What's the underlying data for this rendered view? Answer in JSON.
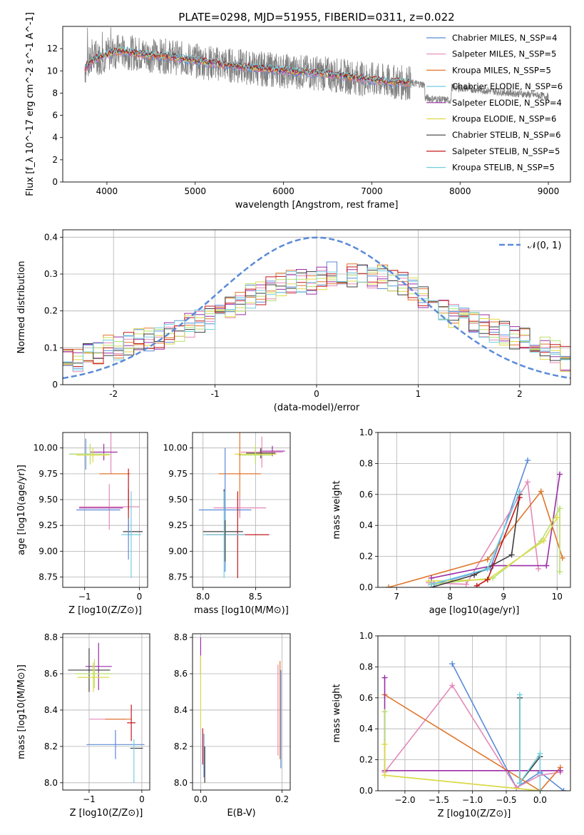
{
  "figure": {
    "title": "PLATE=0298, MJD=51955, FIBERID=0311, z=0.022"
  },
  "palette": [
    "#5b8bd8",
    "#e48ab9",
    "#e0762b",
    "#9b2fa7",
    "#b7e06b",
    "#ded947",
    "#3e3e3e",
    "#c3181c",
    "#72cfe0"
  ],
  "chart_data": [
    {
      "id": "spectrum",
      "type": "line",
      "title": "PLATE=0298, MJD=51955, FIBERID=0311, z=0.022",
      "xlabel": "wavelength [Angstrom, rest frame]",
      "ylabel": "Flux [f_λ 10^-17 erg cm^-2 s^-1 A^-1]",
      "xlim": [
        3500,
        9250
      ],
      "ylim": [
        0,
        14
      ],
      "xticks": [
        4000,
        5000,
        6000,
        7000,
        8000,
        9000
      ],
      "yticks": [
        0,
        2,
        4,
        6,
        8,
        10,
        12
      ],
      "legend": "top-right",
      "data_color": "#808080",
      "data_range": [
        3750,
        9000
      ],
      "models_range": [
        3750,
        7430
      ],
      "continuum": {
        "x": [
          3750,
          3850,
          3950,
          4050,
          4150,
          4300,
          4500,
          4700,
          5000,
          5300,
          5600,
          6000,
          6400,
          6800,
          7200,
          7430,
          7800,
          8200,
          8600,
          9000
        ],
        "y": [
          10.2,
          11.0,
          11.3,
          11.6,
          11.8,
          11.6,
          11.4,
          11.3,
          10.9,
          10.6,
          10.3,
          10.0,
          9.8,
          9.4,
          9.0,
          8.9,
          8.6,
          8.3,
          8.0,
          7.7
        ]
      },
      "series": [
        {
          "name": "Chabrier MILES, N_SSP=4",
          "color": "#5b8bd8"
        },
        {
          "name": "Salpeter MILES, N_SSP=5",
          "color": "#e48ab9"
        },
        {
          "name": "Kroupa MILES, N_SSP=5",
          "color": "#e0762b"
        },
        {
          "name": "Chabrier ELODIE, N_SSP=6",
          "color": "#72cfe0"
        },
        {
          "name": "Salpeter ELODIE, N_SSP=4",
          "color": "#9b2fa7"
        },
        {
          "name": "Kroupa ELODIE, N_SSP=6",
          "color": "#ded947"
        },
        {
          "name": "Chabrier STELIB, N_SSP=6",
          "color": "#3e3e3e"
        },
        {
          "name": "Salpeter STELIB, N_SSP=5",
          "color": "#c3181c"
        },
        {
          "name": "Kroupa STELIB, N_SSP=5",
          "color": "#72cfe0"
        }
      ]
    },
    {
      "id": "residuals",
      "type": "line",
      "xlabel": "(data-model)/error",
      "ylabel": "Normed distribution",
      "xlim": [
        -2.5,
        2.5
      ],
      "ylim": [
        0,
        0.42
      ],
      "xticks": [
        -2,
        -1,
        0,
        1,
        2
      ],
      "yticks": [
        0.0,
        0.1,
        0.2,
        0.3,
        0.4
      ],
      "grid": true,
      "legend": "top-right",
      "reference": {
        "name": "𝒩(0, 1)",
        "color": "#5b8bd8",
        "mean": 0,
        "sigma": 1
      },
      "bins": 50,
      "base": [
        0.07,
        0.07,
        0.08,
        0.09,
        0.1,
        0.1,
        0.11,
        0.12,
        0.12,
        0.13,
        0.14,
        0.15,
        0.16,
        0.17,
        0.18,
        0.19,
        0.21,
        0.22,
        0.24,
        0.25,
        0.26,
        0.27,
        0.28,
        0.28,
        0.28,
        0.29,
        0.3,
        0.3,
        0.3,
        0.3,
        0.29,
        0.29,
        0.28,
        0.27,
        0.26,
        0.24,
        0.22,
        0.21,
        0.19,
        0.18,
        0.17,
        0.16,
        0.15,
        0.14,
        0.13,
        0.12,
        0.11,
        0.1,
        0.09,
        0.07
      ],
      "series_colors": [
        "#5b8bd8",
        "#e48ab9",
        "#e0762b",
        "#9b2fa7",
        "#b7e06b",
        "#ded947",
        "#3e3e3e",
        "#c3181c",
        "#72cfe0"
      ]
    },
    {
      "id": "age-vs-Z",
      "type": "errorbar",
      "xlabel": "Z [log10(Z/Z⊙)]",
      "ylabel": "age  [log10(age/yr)]",
      "xlim": [
        -1.4,
        0.15
      ],
      "ylim": [
        8.65,
        10.15
      ],
      "xticks": [
        -1,
        0
      ],
      "yticks": [
        8.75,
        9.0,
        9.25,
        9.5,
        9.75,
        10.0
      ],
      "xtick_labels": [
        "−1",
        "0"
      ],
      "ytick_labels": [
        "8.75",
        "9.00",
        "9.25",
        "9.50",
        "9.75",
        "10.00"
      ],
      "grid": true,
      "points": [
        {
          "c": "#e48ab9",
          "x": -0.52,
          "y": 9.95,
          "xe": 0.0,
          "ye": 0.2
        },
        {
          "c": "#9b2fa7",
          "x": -0.65,
          "y": 9.96,
          "xe": 0.25,
          "ye": 0.08
        },
        {
          "c": "#5b8bd8",
          "x": -0.98,
          "y": 9.94,
          "xe": 0.3,
          "ye": 0.15
        },
        {
          "c": "#b7e06b",
          "x": -0.9,
          "y": 9.94,
          "xe": 0.38,
          "ye": 0.1
        },
        {
          "c": "#ded947",
          "x": -0.85,
          "y": 9.93,
          "xe": 0.3,
          "ye": 0.07
        },
        {
          "c": "#e0762b",
          "x": -0.45,
          "y": 9.75,
          "xe": 0.28,
          "ye": 0.0
        },
        {
          "c": "#c3181c",
          "x": -0.2,
          "y": 9.6,
          "xe": 0.0,
          "ye": 0.2
        },
        {
          "c": "#e48ab9",
          "x": -0.55,
          "y": 9.43,
          "xe": 0.55,
          "ye": 0.22
        },
        {
          "c": "#9b2fa7",
          "x": -0.7,
          "y": 9.42,
          "xe": 0.4,
          "ye": 0.0
        },
        {
          "c": "#5b8bd8",
          "x": -0.75,
          "y": 9.4,
          "xe": 0.4,
          "ye": 0.0
        },
        {
          "c": "#c3181c",
          "x": -0.2,
          "y": 9.4,
          "xe": 0.0,
          "ye": 0.2
        },
        {
          "c": "#3e3e3e",
          "x": -0.12,
          "y": 9.19,
          "xe": 0.18,
          "ye": 0.0
        },
        {
          "c": "#72cfe0",
          "x": -0.15,
          "y": 9.16,
          "xe": 0.18,
          "ye": 0.42
        },
        {
          "c": "#5b8bd8",
          "x": -0.2,
          "y": 9.12,
          "xe": 0.0,
          "ye": 0.2
        }
      ]
    },
    {
      "id": "age-vs-mass",
      "type": "errorbar",
      "xlabel": "mass [log10(M/M⊙)]",
      "ylabel": "",
      "xlim": [
        7.9,
        8.83
      ],
      "ylim": [
        8.65,
        10.15
      ],
      "xticks": [
        8.0,
        8.5
      ],
      "yticks": [
        8.75,
        9.0,
        9.25,
        9.5,
        9.75,
        10.0
      ],
      "xtick_labels": [
        "8.0",
        "8.5"
      ],
      "ytick_labels": [
        "8.75",
        "9.00",
        "9.25",
        "9.50",
        "9.75",
        "10.00"
      ],
      "grid": true,
      "points": [
        {
          "c": "#9b2fa7",
          "x": 8.66,
          "y": 9.97,
          "xe": 0.12,
          "ye": 0.05
        },
        {
          "c": "#e48ab9",
          "x": 8.56,
          "y": 9.96,
          "xe": 0.2,
          "ye": 0.15
        },
        {
          "c": "#3e3e3e",
          "x": 8.55,
          "y": 9.95,
          "xe": 0.14,
          "ye": 0.05
        },
        {
          "c": "#ded947",
          "x": 8.5,
          "y": 9.94,
          "xe": 0.2,
          "ye": 0.09
        },
        {
          "c": "#b7e06b",
          "x": 8.5,
          "y": 9.93,
          "xe": 0.16,
          "ye": 0.08
        },
        {
          "c": "#e0762b",
          "x": 8.35,
          "y": 9.75,
          "xe": 0.2,
          "ye": 0.4
        },
        {
          "c": "#e48ab9",
          "x": 8.35,
          "y": 9.42,
          "xe": 0.25,
          "ye": 0.1
        },
        {
          "c": "#5b8bd8",
          "x": 8.21,
          "y": 9.4,
          "xe": 0.25,
          "ye": 0.6
        },
        {
          "c": "#3e3e3e",
          "x": 8.2,
          "y": 9.5,
          "xe": 0.0,
          "ye": 0.1
        },
        {
          "c": "#3e3e3e",
          "x": 8.19,
          "y": 9.19,
          "xe": 0.19,
          "ye": 0.0
        },
        {
          "c": "#c3181c",
          "x": 8.33,
          "y": 9.16,
          "xe": 0.3,
          "ye": 0.42
        },
        {
          "c": "#72cfe0",
          "x": 8.2,
          "y": 9.16,
          "xe": 0.2,
          "ye": 0.42
        },
        {
          "c": "#3e3e3e",
          "x": 8.21,
          "y": 9.1,
          "xe": 0.0,
          "ye": 0.2
        }
      ]
    },
    {
      "id": "massweight-vs-age",
      "type": "line",
      "xlabel": "age  [log10(age/yr)]",
      "ylabel": "mass weight",
      "xlim": [
        6.65,
        10.25
      ],
      "ylim": [
        0,
        1.0
      ],
      "xticks": [
        7,
        8,
        9,
        10
      ],
      "yticks": [
        0.0,
        0.2,
        0.4,
        0.6,
        0.8,
        1.0
      ],
      "xtick_labels": [
        "7",
        "8",
        "9",
        "10"
      ],
      "ytick_labels": [
        "0.0",
        "0.2",
        "0.4",
        "0.6",
        "0.8",
        "1.0"
      ],
      "grid": true,
      "series": [
        {
          "color": "#5b8bd8",
          "x": [
            7.7,
            8.75,
            9.45
          ],
          "y": [
            0.02,
            0.12,
            0.82
          ]
        },
        {
          "color": "#e48ab9",
          "x": [
            7.6,
            8.3,
            9.45,
            9.65
          ],
          "y": [
            0.03,
            0.02,
            0.68,
            0.12
          ]
        },
        {
          "color": "#e0762b",
          "x": [
            6.85,
            8.7,
            9.7,
            10.1
          ],
          "y": [
            0.0,
            0.18,
            0.62,
            0.19
          ]
        },
        {
          "color": "#9b2fa7",
          "x": [
            7.65,
            8.8,
            9.8,
            10.05
          ],
          "y": [
            0.06,
            0.14,
            0.14,
            0.73
          ]
        },
        {
          "color": "#b7e06b",
          "x": [
            7.65,
            8.8,
            9.7,
            10.05,
            10.05
          ],
          "y": [
            0.02,
            0.06,
            0.3,
            0.51,
            0.1
          ]
        },
        {
          "color": "#ded947",
          "x": [
            7.6,
            8.7,
            9.75,
            10.0
          ],
          "y": [
            0.04,
            0.05,
            0.3,
            0.45
          ]
        },
        {
          "color": "#3e3e3e",
          "x": [
            7.65,
            8.45,
            9.15,
            9.3
          ],
          "y": [
            0.0,
            0.08,
            0.21,
            0.6
          ]
        },
        {
          "color": "#c3181c",
          "x": [
            8.5,
            8.7,
            9.3
          ],
          "y": [
            0.01,
            0.05,
            0.58
          ]
        },
        {
          "color": "#72cfe0",
          "x": [
            7.65,
            8.7,
            9.3
          ],
          "y": [
            0.02,
            0.12,
            0.62
          ]
        }
      ]
    },
    {
      "id": "mass-vs-Z",
      "type": "errorbar",
      "xlabel": "Z [log10(Z/Z⊙)]",
      "ylabel": "mass [log10(M/M⊙)]",
      "xlim": [
        -1.5,
        0.15
      ],
      "ylim": [
        7.96,
        8.82
      ],
      "xticks": [
        -1,
        0
      ],
      "yticks": [
        8.0,
        8.2,
        8.4,
        8.6,
        8.8
      ],
      "xtick_labels": [
        "−1",
        "0"
      ],
      "ytick_labels": [
        "8.0",
        "8.2",
        "8.4",
        "8.6",
        "8.8"
      ],
      "grid": true,
      "points": [
        {
          "c": "#9b2fa7",
          "x": -0.82,
          "y": 8.64,
          "xe": 0.25,
          "ye": 0.13
        },
        {
          "c": "#3e3e3e",
          "x": -1.0,
          "y": 8.62,
          "xe": 0.4,
          "ye": 0.12
        },
        {
          "c": "#b7e06b",
          "x": -0.9,
          "y": 8.6,
          "xe": 0.35,
          "ye": 0.08
        },
        {
          "c": "#ded947",
          "x": -0.92,
          "y": 8.58,
          "xe": 0.3,
          "ye": 0.08
        },
        {
          "c": "#e48ab9",
          "x": -0.65,
          "y": 8.35,
          "xe": 0.35,
          "ye": 0.0
        },
        {
          "c": "#e0762b",
          "x": -0.45,
          "y": 8.35,
          "xe": 0.25,
          "ye": 0.0
        },
        {
          "c": "#c3181c",
          "x": -0.2,
          "y": 8.33,
          "xe": 0.08,
          "ye": 0.1
        },
        {
          "c": "#5b8bd8",
          "x": -0.5,
          "y": 8.21,
          "xe": 0.55,
          "ye": 0.08
        },
        {
          "c": "#3e3e3e",
          "x": -0.1,
          "y": 8.19,
          "xe": 0.12,
          "ye": 0.0
        },
        {
          "c": "#72cfe0",
          "x": -0.15,
          "y": 8.12,
          "xe": 0.0,
          "ye": 0.12
        }
      ]
    },
    {
      "id": "mass-vs-ebv",
      "type": "errorbar",
      "xlabel": "E(B-V)",
      "ylabel": "",
      "xlim": [
        -0.02,
        0.22
      ],
      "ylim": [
        7.96,
        8.82
      ],
      "xticks": [
        0.0,
        0.2
      ],
      "yticks": [
        8.0,
        8.2,
        8.4,
        8.6,
        8.8
      ],
      "xtick_labels": [
        "0.0",
        "0.2"
      ],
      "ytick_labels": [
        "8.0",
        "8.2",
        "8.4",
        "8.6",
        "8.8"
      ],
      "grid": true,
      "points": [
        {
          "c": "#9b2fa7",
          "x": 0.0,
          "y": 8.7,
          "xe": 0.0,
          "ye": 0.1
        },
        {
          "c": "#ded947",
          "x": 0.0,
          "y": 8.5,
          "xe": 0.0,
          "ye": 0.2
        },
        {
          "c": "#c3181c",
          "x": 0.005,
          "y": 8.2,
          "xe": 0.0,
          "ye": 0.1
        },
        {
          "c": "#5b8bd8",
          "x": 0.008,
          "y": 8.15,
          "xe": 0.0,
          "ye": 0.12
        },
        {
          "c": "#3e3e3e",
          "x": 0.01,
          "y": 8.1,
          "xe": 0.0,
          "ye": 0.1
        },
        {
          "c": "#e48ab9",
          "x": 0.19,
          "y": 8.4,
          "xe": 0.0,
          "ye": 0.25
        },
        {
          "c": "#e0762b",
          "x": 0.195,
          "y": 8.4,
          "xe": 0.0,
          "ye": 0.27
        },
        {
          "c": "#5b8bd8",
          "x": 0.197,
          "y": 8.35,
          "xe": 0.0,
          "ye": 0.27
        }
      ]
    },
    {
      "id": "massweight-vs-Z",
      "type": "line",
      "xlabel": "Z [log10(Z/Z⊙)]",
      "ylabel": "mass weight",
      "xlim": [
        -2.4,
        0.45
      ],
      "ylim": [
        0,
        1.0
      ],
      "xticks": [
        -2.0,
        -1.5,
        -1.0,
        -0.5,
        0.0
      ],
      "yticks": [
        0.0,
        0.2,
        0.4,
        0.6,
        0.8,
        1.0
      ],
      "xtick_labels": [
        "−2.0",
        "−1.5",
        "−1.0",
        "−0.5",
        "0.0"
      ],
      "ytick_labels": [
        "0.0",
        "0.2",
        "0.4",
        "0.6",
        "0.8",
        "1.0"
      ],
      "grid": true,
      "series": [
        {
          "color": "#5b8bd8",
          "x": [
            -1.3,
            -0.35,
            0.0,
            0.35
          ],
          "y": [
            0.82,
            0.02,
            0.12,
            0.0
          ]
        },
        {
          "color": "#e48ab9",
          "x": [
            -2.3,
            -1.3,
            -0.35,
            0.0,
            0.3
          ],
          "y": [
            0.12,
            0.68,
            0.02,
            0.1,
            0.12
          ]
        },
        {
          "color": "#e0762b",
          "x": [
            -2.3,
            0.0,
            0.3
          ],
          "y": [
            0.62,
            0.0,
            0.15
          ]
        },
        {
          "color": "#9b2fa7",
          "x": [
            -2.3,
            -2.3,
            0.3
          ],
          "y": [
            0.73,
            0.13,
            0.13
          ]
        },
        {
          "color": "#b7e06b",
          "x": [
            -2.3,
            -2.3,
            0.0
          ],
          "y": [
            0.51,
            0.1,
            0.0
          ]
        },
        {
          "color": "#ded947",
          "x": [
            -2.3,
            -2.3,
            0.0
          ],
          "y": [
            0.3,
            0.1,
            0.0
          ]
        },
        {
          "color": "#3e3e3e",
          "x": [
            -0.3,
            -0.3,
            0.0
          ],
          "y": [
            0.6,
            0.05,
            0.22
          ]
        },
        {
          "color": "#72cfe0",
          "x": [
            -0.3,
            -0.3,
            0.0,
            0.0
          ],
          "y": [
            0.62,
            0.05,
            0.24,
            0.0
          ]
        }
      ]
    }
  ]
}
